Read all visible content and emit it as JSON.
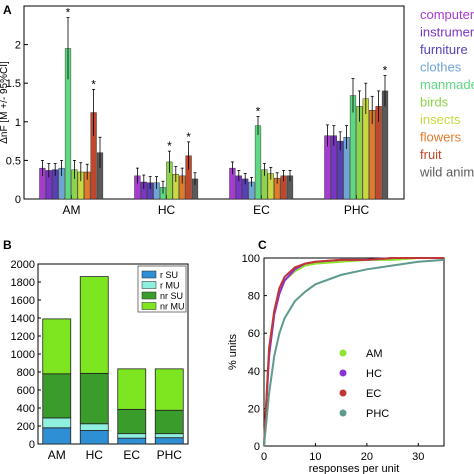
{
  "panels": {
    "a": "A",
    "b": "B",
    "c": "C"
  },
  "chart_data": [
    {
      "panel": "A",
      "type": "bar",
      "ylabel": "ΔnF [M +/- 95%CI]",
      "ylim": [
        0,
        2.5
      ],
      "yticks": [
        0,
        0.5,
        1,
        1.5,
        2
      ],
      "categories": [
        "AM",
        "HC",
        "EC",
        "PHC"
      ],
      "grid": false,
      "legend_position": "right",
      "significance_marker": "*",
      "series": [
        {
          "name": "computer",
          "color": "#a63bd1",
          "values": [
            0.4,
            0.3,
            0.4,
            0.82
          ],
          "err": [
            0.1,
            0.1,
            0.08,
            0.14
          ],
          "significant": [
            false,
            false,
            false,
            false
          ]
        },
        {
          "name": "instruments",
          "color": "#7b35c6",
          "values": [
            0.37,
            0.22,
            0.3,
            0.82
          ],
          "err": [
            0.09,
            0.09,
            0.07,
            0.13
          ],
          "significant": [
            false,
            false,
            false,
            false
          ]
        },
        {
          "name": "furniture",
          "color": "#5a3fb5",
          "values": [
            0.38,
            0.21,
            0.26,
            0.75
          ],
          "err": [
            0.08,
            0.08,
            0.07,
            0.12
          ],
          "significant": [
            false,
            false,
            false,
            false
          ]
        },
        {
          "name": "clothes",
          "color": "#6da5d6",
          "values": [
            0.4,
            0.21,
            0.22,
            0.8
          ],
          "err": [
            0.1,
            0.08,
            0.06,
            0.15
          ],
          "significant": [
            false,
            false,
            false,
            false
          ]
        },
        {
          "name": "manmade food",
          "color": "#5fd882",
          "values": [
            1.95,
            0.15,
            0.95,
            1.34
          ],
          "err": [
            0.4,
            0.08,
            0.12,
            0.22
          ],
          "significant": [
            true,
            false,
            true,
            false
          ]
        },
        {
          "name": "birds",
          "color": "#8dd44a",
          "values": [
            0.38,
            0.48,
            0.38,
            1.2
          ],
          "err": [
            0.12,
            0.14,
            0.08,
            0.2
          ],
          "significant": [
            false,
            true,
            false,
            false
          ]
        },
        {
          "name": "insects",
          "color": "#c8d93f",
          "values": [
            0.35,
            0.32,
            0.33,
            1.3
          ],
          "err": [
            0.12,
            0.1,
            0.08,
            0.2
          ],
          "significant": [
            false,
            false,
            false,
            false
          ]
        },
        {
          "name": "flowers",
          "color": "#e07b2c",
          "values": [
            0.35,
            0.3,
            0.27,
            1.15
          ],
          "err": [
            0.1,
            0.1,
            0.07,
            0.18
          ],
          "significant": [
            false,
            false,
            false,
            false
          ]
        },
        {
          "name": "fruit",
          "color": "#c0462c",
          "values": [
            1.12,
            0.56,
            0.3,
            1.2
          ],
          "err": [
            0.3,
            0.18,
            0.07,
            0.2
          ],
          "significant": [
            true,
            true,
            false,
            false
          ]
        },
        {
          "name": "wild animals",
          "color": "#5a5a5a",
          "values": [
            0.6,
            0.26,
            0.3,
            1.4
          ],
          "err": [
            0.2,
            0.08,
            0.07,
            0.2
          ],
          "significant": [
            false,
            false,
            false,
            true
          ]
        }
      ]
    },
    {
      "panel": "B",
      "type": "bar",
      "stacked": true,
      "categories": [
        "AM",
        "HC",
        "EC",
        "PHC"
      ],
      "ylim": [
        0,
        2000
      ],
      "yticks": [
        0,
        200,
        400,
        600,
        800,
        1000,
        1200,
        1400,
        1600,
        1800,
        2000
      ],
      "legend_position": "top-right",
      "series": [
        {
          "name": "r SU",
          "color": "#2e8fd4",
          "values": [
            180,
            150,
            65,
            70
          ]
        },
        {
          "name": "r MU",
          "color": "#8ff0e0",
          "values": [
            110,
            75,
            50,
            45
          ]
        },
        {
          "name": "nr SU",
          "color": "#3a9d2b",
          "values": [
            490,
            560,
            270,
            260
          ]
        },
        {
          "name": "nr MU",
          "color": "#7ee620",
          "values": [
            610,
            1075,
            450,
            460
          ]
        }
      ]
    },
    {
      "panel": "C",
      "type": "line",
      "xlabel": "responses per unit",
      "ylabel": "% units",
      "xlim": [
        0,
        35
      ],
      "ylim": [
        0,
        100
      ],
      "xticks": [
        0,
        10,
        20,
        30
      ],
      "yticks": [
        0,
        20,
        40,
        60,
        80,
        100
      ],
      "legend_position": "center-right",
      "series": [
        {
          "name": "AM",
          "color": "#8ee52e",
          "x": [
            0,
            1,
            2,
            3,
            4,
            6,
            8,
            10,
            15,
            20,
            25,
            30,
            35
          ],
          "y": [
            0,
            52,
            72,
            82,
            88,
            93,
            96,
            97,
            98,
            99,
            99,
            100,
            100
          ]
        },
        {
          "name": "HC",
          "color": "#8a32d6",
          "x": [
            0,
            1,
            2,
            3,
            4,
            6,
            8,
            10,
            15,
            20,
            25,
            30,
            35
          ],
          "y": [
            0,
            48,
            70,
            81,
            88,
            94,
            97,
            98,
            99,
            99,
            100,
            100,
            100
          ]
        },
        {
          "name": "EC",
          "color": "#c23535",
          "x": [
            0,
            1,
            2,
            3,
            4,
            6,
            8,
            10,
            15,
            20,
            25,
            30,
            35
          ],
          "y": [
            0,
            52,
            72,
            84,
            90,
            95,
            97,
            98,
            99,
            99,
            100,
            100,
            100
          ]
        },
        {
          "name": "PHC",
          "color": "#5e9a8e",
          "x": [
            0,
            1,
            2,
            3,
            4,
            6,
            8,
            10,
            15,
            20,
            25,
            30,
            35
          ],
          "y": [
            0,
            28,
            48,
            60,
            68,
            77,
            82,
            86,
            91,
            94,
            96,
            98,
            99
          ]
        }
      ]
    }
  ]
}
